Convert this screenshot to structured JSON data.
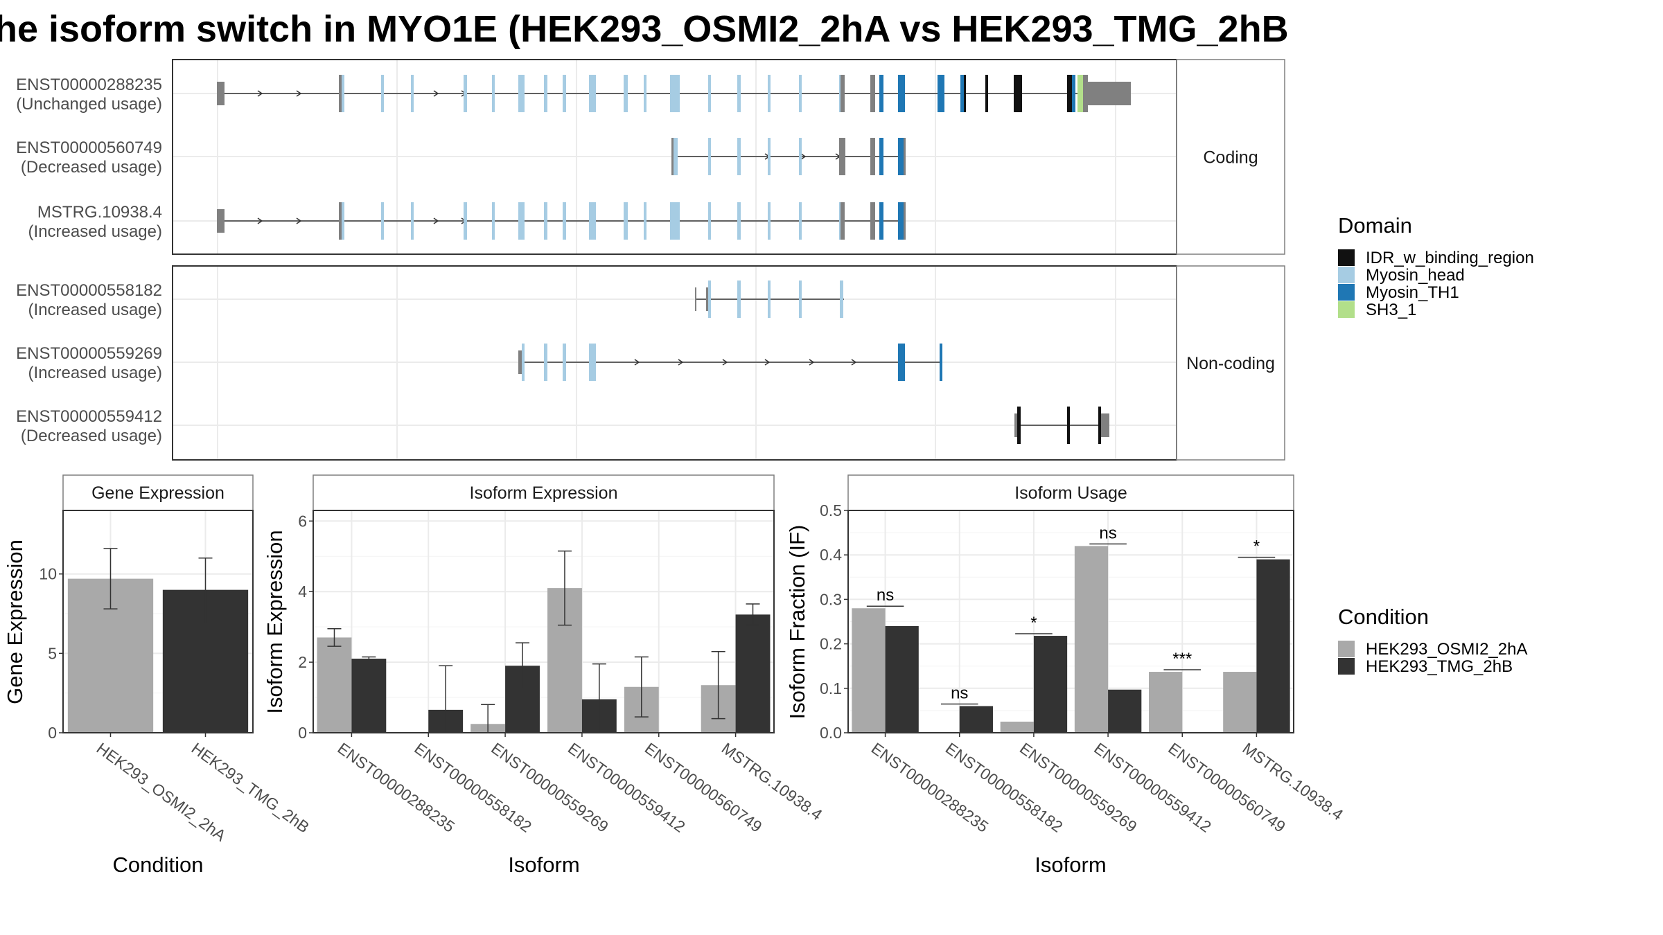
{
  "title": "he isoform switch in MYO1E (HEK293_OSMI2_2hA vs HEK293_TMG_2hB",
  "colors": {
    "IDR_w_binding_region": "#111111",
    "Myosin_head": "#a6cce3",
    "Myosin_TH1": "#1f77b4",
    "SH3_1": "#b2df8a",
    "other": "#808080",
    "cond_a": "#a9a9a9",
    "cond_b": "#333333"
  },
  "structure": {
    "coding_label": "Coding",
    "noncoding_label": "Non-coding",
    "transcripts": [
      {
        "id": "ENST00000288235",
        "usage": "(Unchanged usage)",
        "panel": "coding"
      },
      {
        "id": "ENST00000560749",
        "usage": "(Decreased usage)",
        "panel": "coding"
      },
      {
        "id": "MSTRG.10938.4",
        "usage": "(Increased usage)",
        "panel": "coding"
      },
      {
        "id": "ENST00000558182",
        "usage": "(Increased usage)",
        "panel": "noncoding"
      },
      {
        "id": "ENST00000559269",
        "usage": "(Increased usage)",
        "panel": "noncoding"
      },
      {
        "id": "ENST00000559412",
        "usage": "(Decreased usage)",
        "panel": "noncoding"
      }
    ]
  },
  "legends": {
    "domain": {
      "title": "Domain",
      "items": [
        {
          "label": "IDR_w_binding_region",
          "color": "#111111"
        },
        {
          "label": "Myosin_head",
          "color": "#a6cce3"
        },
        {
          "label": "Myosin_TH1",
          "color": "#1f77b4"
        },
        {
          "label": "SH3_1",
          "color": "#b2df8a"
        }
      ]
    },
    "condition": {
      "title": "Condition",
      "items": [
        {
          "label": "HEK293_OSMI2_2hA",
          "color": "#a9a9a9"
        },
        {
          "label": "HEK293_TMG_2hB",
          "color": "#333333"
        }
      ]
    }
  },
  "chart_data": [
    {
      "type": "bar",
      "title": "Gene Expression",
      "xlabel": "Condition",
      "ylabel": "Gene Expression",
      "ylim": [
        0,
        14
      ],
      "yticks": [
        0,
        5,
        10
      ],
      "categories": [
        "HEK293_OSMI2_2hA",
        "HEK293_TMG_2hB"
      ],
      "values": [
        9.7,
        9.0
      ],
      "error_low": [
        7.8,
        6.9
      ],
      "error_high": [
        11.6,
        11.0
      ]
    },
    {
      "type": "bar",
      "title": "Isoform Expression",
      "xlabel": "Isoform",
      "ylabel": "Isoform Expression",
      "ylim": [
        0,
        6.3
      ],
      "yticks": [
        0,
        2,
        4,
        6
      ],
      "categories": [
        "ENST00000288235",
        "ENST00000558182",
        "ENST00000559269",
        "ENST00000559412",
        "ENST00000560749",
        "MSTRG.10938.4"
      ],
      "series": [
        {
          "name": "HEK293_OSMI2_2hA",
          "values": [
            2.7,
            0.0,
            0.25,
            4.1,
            1.3,
            1.35
          ],
          "error_low": [
            2.45,
            0.0,
            0.0,
            3.05,
            0.45,
            0.4
          ],
          "error_high": [
            2.95,
            0.0,
            0.8,
            5.15,
            2.15,
            2.3
          ]
        },
        {
          "name": "HEK293_TMG_2hB",
          "values": [
            2.1,
            0.65,
            1.9,
            0.95,
            0.0,
            3.35
          ],
          "error_low": [
            2.05,
            0.0,
            1.25,
            0.0,
            0.0,
            3.05
          ],
          "error_high": [
            2.15,
            1.9,
            2.55,
            1.95,
            0.0,
            3.65
          ]
        }
      ]
    },
    {
      "type": "bar",
      "title": "Isoform Usage",
      "xlabel": "Isoform",
      "ylabel": "Isoform Fraction (IF)",
      "ylim": [
        0,
        0.5
      ],
      "yticks": [
        0.0,
        0.1,
        0.2,
        0.3,
        0.4,
        0.5
      ],
      "ytick_labels": [
        "0.0",
        "0.1",
        "0.2",
        "0.3",
        "0.4",
        "0.5"
      ],
      "categories": [
        "ENST00000288235",
        "ENST00000558182",
        "ENST00000559269",
        "ENST00000559412",
        "ENST00000560749",
        "MSTRG.10938.4"
      ],
      "series": [
        {
          "name": "HEK293_OSMI2_2hA",
          "values": [
            0.28,
            0.0,
            0.025,
            0.42,
            0.137,
            0.137
          ]
        },
        {
          "name": "HEK293_TMG_2hB",
          "values": [
            0.24,
            0.06,
            0.218,
            0.097,
            0.0,
            0.39
          ]
        }
      ],
      "significance": [
        "ns",
        "ns",
        "*",
        "ns",
        "***",
        "*"
      ]
    }
  ]
}
